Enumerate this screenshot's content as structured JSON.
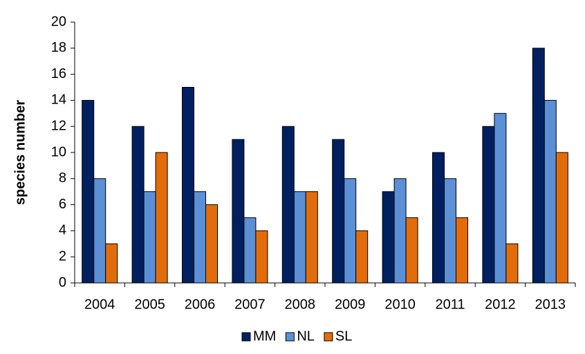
{
  "chart_data": {
    "type": "bar",
    "y_label": "species number",
    "categories": [
      "2004",
      "2005",
      "2006",
      "2007",
      "2008",
      "2009",
      "2010",
      "2011",
      "2012",
      "2013"
    ],
    "series": [
      {
        "name": "MM",
        "color": "#002060",
        "values": [
          14,
          12,
          15,
          11,
          12,
          11,
          7,
          10,
          12,
          18
        ]
      },
      {
        "name": "NL",
        "color": "#5b8fd6",
        "values": [
          8,
          7,
          7,
          5,
          7,
          8,
          8,
          8,
          13,
          14
        ]
      },
      {
        "name": "SL",
        "color": "#e36c0a",
        "values": [
          3,
          10,
          6,
          4,
          7,
          4,
          5,
          5,
          3,
          10
        ]
      }
    ],
    "ylim": [
      0,
      20
    ],
    "yticks": [
      0,
      2,
      4,
      6,
      8,
      10,
      12,
      14,
      16,
      18,
      20
    ],
    "legend": "bottom"
  }
}
